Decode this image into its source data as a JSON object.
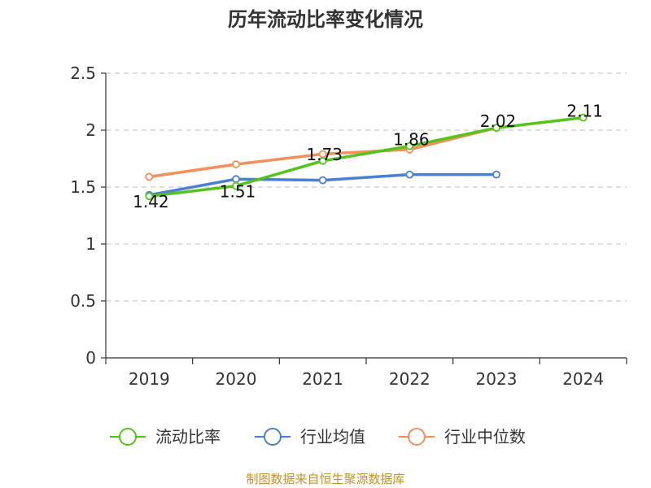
{
  "chart_data": {
    "type": "line",
    "title": "历年流动比率变化情况",
    "categories": [
      "2019",
      "2020",
      "2021",
      "2022",
      "2023",
      "2024"
    ],
    "ylim": [
      0,
      2.5
    ],
    "yticks": [
      "0",
      "0.5",
      "1",
      "1.5",
      "2",
      "2.5"
    ],
    "grid": true,
    "legend_position": "bottom",
    "series": [
      {
        "name": "流动比率",
        "color": "#52c41a",
        "values": [
          1.42,
          1.51,
          1.73,
          1.86,
          2.02,
          2.11
        ],
        "labels": [
          "1.42",
          "1.51",
          "1.73",
          "1.86",
          "2.02",
          "2.11"
        ]
      },
      {
        "name": "行业均值",
        "color": "#4a7fd4",
        "values": [
          1.43,
          1.57,
          1.56,
          1.61,
          1.61,
          null
        ]
      },
      {
        "name": "行业中位数",
        "color": "#f5905a",
        "values": [
          1.59,
          1.7,
          1.79,
          1.83,
          2.02,
          null
        ]
      }
    ],
    "source": "制图数据来自恒生聚源数据库"
  }
}
